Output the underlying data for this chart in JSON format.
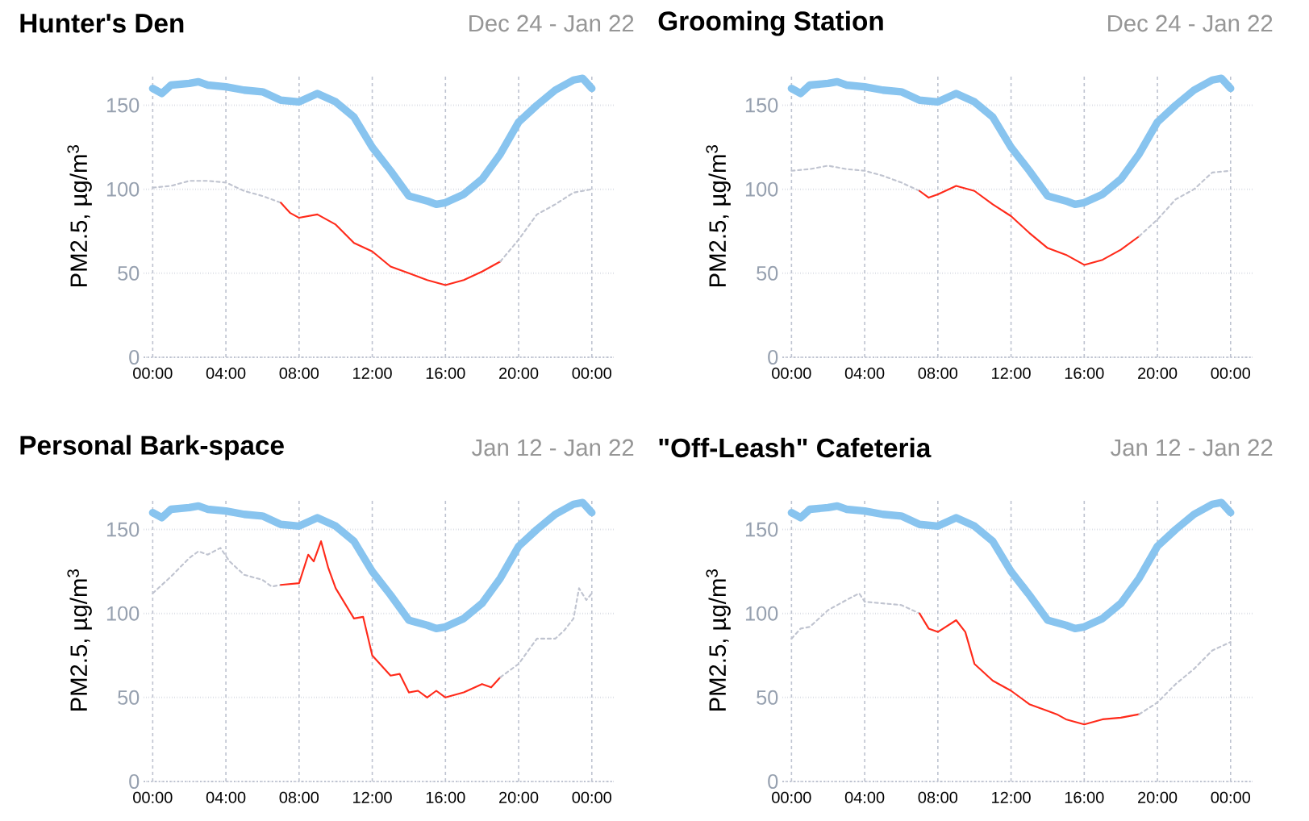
{
  "chart_data": [
    {
      "type": "line",
      "title": "Hunter's Den",
      "subtitle": "Dec 24 - Jan 22",
      "ylabel": "PM2.5, µg/m$^{3}$",
      "xlim": [
        -0.5,
        25.2
      ],
      "ylim": [
        0,
        168
      ],
      "xticks": [
        {
          "value": 0,
          "label": "00:00"
        },
        {
          "value": 4,
          "label": "04:00"
        },
        {
          "value": 8,
          "label": "08:00"
        },
        {
          "value": 12,
          "label": "12:00"
        },
        {
          "value": 16,
          "label": "16:00"
        },
        {
          "value": 20,
          "label": "20:00"
        },
        {
          "value": 24,
          "label": "00:00"
        }
      ],
      "yticks": [
        0,
        50,
        100,
        150
      ],
      "grid": true,
      "marker": "none",
      "series": [
        {
          "color": "#88c4ef",
          "line_style": "solid",
          "x": [
            0,
            0.5,
            1,
            2,
            2.5,
            3,
            4,
            5,
            6,
            7,
            8,
            9,
            10,
            11,
            12,
            13,
            14,
            15,
            15.5,
            16,
            17,
            18,
            19,
            20,
            21,
            22,
            23,
            23.5,
            24
          ],
          "values": [
            160,
            157,
            162,
            163,
            164,
            162,
            161,
            159,
            158,
            153,
            152,
            157,
            152,
            143,
            125,
            111,
            96,
            93,
            91,
            92,
            97,
            106,
            121,
            140,
            150,
            159,
            165,
            166,
            160
          ]
        },
        {
          "color": "#c0c4d0",
          "line_style": "dashed",
          "x": [
            0,
            1,
            2,
            3,
            4,
            5,
            6,
            7
          ],
          "values": [
            101,
            102,
            105,
            105,
            104,
            99,
            96,
            92
          ]
        },
        {
          "color": "#ff2a1a",
          "line_style": "solid",
          "x": [
            7,
            7.5,
            8,
            9,
            10,
            11,
            12,
            13,
            14,
            15,
            16,
            17,
            18,
            19
          ],
          "values": [
            92,
            86,
            83,
            85,
            79,
            68,
            63,
            54,
            50,
            46,
            43,
            46,
            51,
            57
          ]
        },
        {
          "color": "#c0c4d0",
          "line_style": "dashed",
          "x": [
            19,
            20,
            21,
            22,
            23,
            24
          ],
          "values": [
            57,
            70,
            85,
            91,
            98,
            100
          ]
        }
      ]
    },
    {
      "type": "line",
      "title": "Grooming Station",
      "subtitle": "Dec 24 - Jan 22",
      "ylabel": "PM2.5, µg/m$^{3}$",
      "xlim": [
        -0.5,
        25.2
      ],
      "ylim": [
        0,
        168
      ],
      "xticks": [
        {
          "value": 0,
          "label": "00:00"
        },
        {
          "value": 4,
          "label": "04:00"
        },
        {
          "value": 8,
          "label": "08:00"
        },
        {
          "value": 12,
          "label": "12:00"
        },
        {
          "value": 16,
          "label": "16:00"
        },
        {
          "value": 20,
          "label": "20:00"
        },
        {
          "value": 24,
          "label": "00:00"
        }
      ],
      "yticks": [
        0,
        50,
        100,
        150
      ],
      "grid": true,
      "marker": "none",
      "series": [
        {
          "color": "#88c4ef",
          "line_style": "solid",
          "x": [
            0,
            0.5,
            1,
            2,
            2.5,
            3,
            4,
            5,
            6,
            7,
            8,
            9,
            10,
            11,
            12,
            13,
            14,
            15,
            15.5,
            16,
            17,
            18,
            19,
            20,
            21,
            22,
            23,
            23.5,
            24
          ],
          "values": [
            160,
            157,
            162,
            163,
            164,
            162,
            161,
            159,
            158,
            153,
            152,
            157,
            152,
            143,
            125,
            111,
            96,
            93,
            91,
            92,
            97,
            106,
            121,
            140,
            150,
            159,
            165,
            166,
            160
          ]
        },
        {
          "color": "#c0c4d0",
          "line_style": "dashed",
          "x": [
            0,
            1,
            2,
            3,
            4,
            5,
            6,
            7
          ],
          "values": [
            111,
            112,
            114,
            112,
            111,
            108,
            104,
            99
          ]
        },
        {
          "color": "#ff2a1a",
          "line_style": "solid",
          "x": [
            7,
            7.5,
            8,
            9,
            10,
            11,
            12,
            13,
            14,
            15,
            16,
            17,
            18,
            19
          ],
          "values": [
            99,
            95,
            97,
            102,
            99,
            91,
            84,
            74,
            65,
            61,
            55,
            58,
            64,
            72
          ]
        },
        {
          "color": "#c0c4d0",
          "line_style": "dashed",
          "x": [
            19,
            20,
            21,
            22,
            23,
            24
          ],
          "values": [
            72,
            82,
            94,
            100,
            110,
            111
          ]
        }
      ]
    },
    {
      "type": "line",
      "title": "Personal Bark-space",
      "subtitle": "Jan 12 - Jan 22",
      "ylabel": "PM2.5, µg/m$^{3}$",
      "xlim": [
        -0.5,
        25.2
      ],
      "ylim": [
        0,
        168
      ],
      "xticks": [
        {
          "value": 0,
          "label": "00:00"
        },
        {
          "value": 4,
          "label": "04:00"
        },
        {
          "value": 8,
          "label": "08:00"
        },
        {
          "value": 12,
          "label": "12:00"
        },
        {
          "value": 16,
          "label": "16:00"
        },
        {
          "value": 20,
          "label": "20:00"
        },
        {
          "value": 24,
          "label": "00:00"
        }
      ],
      "yticks": [
        0,
        50,
        100,
        150
      ],
      "grid": true,
      "marker": "none",
      "series": [
        {
          "color": "#88c4ef",
          "line_style": "solid",
          "x": [
            0,
            0.5,
            1,
            2,
            2.5,
            3,
            4,
            5,
            6,
            7,
            8,
            9,
            10,
            11,
            12,
            13,
            14,
            15,
            15.5,
            16,
            17,
            18,
            19,
            20,
            21,
            22,
            23,
            23.5,
            24
          ],
          "values": [
            160,
            157,
            162,
            163,
            164,
            162,
            161,
            159,
            158,
            153,
            152,
            157,
            152,
            143,
            125,
            111,
            96,
            93,
            91,
            92,
            97,
            106,
            121,
            140,
            150,
            159,
            165,
            166,
            160
          ]
        },
        {
          "color": "#c0c4d0",
          "line_style": "dashed",
          "x": [
            0,
            1,
            2,
            2.5,
            3,
            3.7,
            4.2,
            5,
            6,
            6.5,
            7
          ],
          "values": [
            112,
            122,
            133,
            137,
            135,
            139,
            131,
            123,
            120,
            116,
            117
          ]
        },
        {
          "color": "#ff2a1a",
          "line_style": "solid",
          "x": [
            7,
            8,
            8.5,
            8.8,
            9.2,
            9.6,
            10,
            11,
            11.5,
            12,
            13,
            13.5,
            14,
            14.5,
            15,
            15.5,
            16,
            17,
            18,
            18.5,
            19
          ],
          "values": [
            117,
            118,
            135,
            131,
            143,
            127,
            115,
            97,
            98,
            75,
            63,
            64,
            53,
            54,
            50,
            54,
            50,
            53,
            58,
            56,
            62
          ]
        },
        {
          "color": "#c0c4d0",
          "line_style": "dashed",
          "x": [
            19,
            20,
            21,
            22,
            22.5,
            23,
            23.3,
            23.7,
            24
          ],
          "values": [
            62,
            70,
            85,
            85,
            90,
            97,
            115,
            108,
            112
          ]
        }
      ]
    },
    {
      "type": "line",
      "title": "\"Off-Leash\" Cafeteria",
      "subtitle": "Jan 12 - Jan 22",
      "ylabel": "PM2.5, µg/m$^{3}$",
      "xlim": [
        -0.5,
        25.2
      ],
      "ylim": [
        0,
        168
      ],
      "xticks": [
        {
          "value": 0,
          "label": "00:00"
        },
        {
          "value": 4,
          "label": "04:00"
        },
        {
          "value": 8,
          "label": "08:00"
        },
        {
          "value": 12,
          "label": "12:00"
        },
        {
          "value": 16,
          "label": "16:00"
        },
        {
          "value": 20,
          "label": "20:00"
        },
        {
          "value": 24,
          "label": "00:00"
        }
      ],
      "yticks": [
        0,
        50,
        100,
        150
      ],
      "grid": true,
      "marker": "none",
      "series": [
        {
          "color": "#88c4ef",
          "line_style": "solid",
          "x": [
            0,
            0.5,
            1,
            2,
            2.5,
            3,
            4,
            5,
            6,
            7,
            8,
            9,
            10,
            11,
            12,
            13,
            14,
            15,
            15.5,
            16,
            17,
            18,
            19,
            20,
            21,
            22,
            23,
            23.5,
            24
          ],
          "values": [
            160,
            157,
            162,
            163,
            164,
            162,
            161,
            159,
            158,
            153,
            152,
            157,
            152,
            143,
            125,
            111,
            96,
            93,
            91,
            92,
            97,
            106,
            121,
            140,
            150,
            159,
            165,
            166,
            160
          ]
        },
        {
          "color": "#c0c4d0",
          "line_style": "dashed",
          "x": [
            0,
            0.5,
            1,
            2,
            3,
            3.7,
            4,
            5,
            6,
            7
          ],
          "values": [
            85,
            91,
            92,
            102,
            108,
            112,
            107,
            106,
            105,
            100
          ]
        },
        {
          "color": "#ff2a1a",
          "line_style": "solid",
          "x": [
            7,
            7.5,
            8,
            9,
            9.5,
            10,
            11,
            12,
            13,
            14,
            14.5,
            15,
            16,
            17,
            18,
            19
          ],
          "values": [
            100,
            91,
            89,
            96,
            89,
            70,
            60,
            54,
            46,
            42,
            40,
            37,
            34,
            37,
            38,
            40
          ]
        },
        {
          "color": "#c0c4d0",
          "line_style": "dashed",
          "x": [
            19,
            20,
            21,
            22,
            23,
            24
          ],
          "values": [
            40,
            47,
            58,
            67,
            78,
            83
          ]
        }
      ]
    }
  ]
}
